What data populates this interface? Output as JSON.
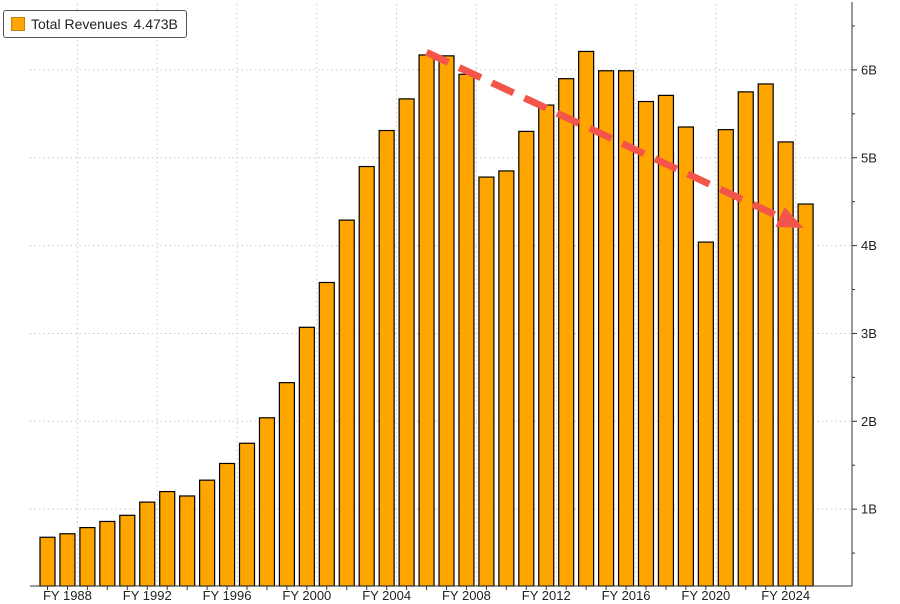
{
  "legend": {
    "label": "Total Revenues",
    "value": "4.473B"
  },
  "colors": {
    "bar": "#ffa500",
    "bar_stroke": "#000000",
    "trend_arrow": "#f4554a",
    "grid": "#c8c8c8"
  },
  "chart_data": {
    "type": "bar",
    "title": "",
    "xlabel": "",
    "ylabel": "",
    "ylim": [
      0,
      6.6
    ],
    "y_ticks": [
      {
        "value": 1,
        "label": "1B"
      },
      {
        "value": 2,
        "label": "2B"
      },
      {
        "value": 3,
        "label": "3B"
      },
      {
        "value": 4,
        "label": "4B"
      },
      {
        "value": 5,
        "label": "5B"
      },
      {
        "value": 6,
        "label": "6B"
      }
    ],
    "x_tick_labels": [
      "FY 1988",
      "FY 1992",
      "FY 1996",
      "FY 2000",
      "FY 2004",
      "FY 2008",
      "FY 2012",
      "FY 2016",
      "FY 2020",
      "FY 2024"
    ],
    "categories": [
      "FY 1987",
      "FY 1988",
      "FY 1989",
      "FY 1990",
      "FY 1991",
      "FY 1992",
      "FY 1993",
      "FY 1994",
      "FY 1995",
      "FY 1996",
      "FY 1997",
      "FY 1998",
      "FY 1999",
      "FY 2000",
      "FY 2001",
      "FY 2002",
      "FY 2003",
      "FY 2004",
      "FY 2005",
      "FY 2006",
      "FY 2007",
      "FY 2008",
      "FY 2009",
      "FY 2010",
      "FY 2011",
      "FY 2012",
      "FY 2013",
      "FY 2014",
      "FY 2015",
      "FY 2016",
      "FY 2017",
      "FY 2018",
      "FY 2019",
      "FY 2020",
      "FY 2021",
      "FY 2022",
      "FY 2023",
      "FY 2024",
      "FY 2025"
    ],
    "series": [
      {
        "name": "Total Revenues",
        "values": [
          0.68,
          0.72,
          0.79,
          0.86,
          0.93,
          1.08,
          1.2,
          1.15,
          1.33,
          1.52,
          1.75,
          2.04,
          2.44,
          3.07,
          3.58,
          4.29,
          4.9,
          5.31,
          5.67,
          6.17,
          6.16,
          5.95,
          4.78,
          4.85,
          5.3,
          5.6,
          5.9,
          6.21,
          5.99,
          5.99,
          5.64,
          5.71,
          5.35,
          4.04,
          5.32,
          5.75,
          5.84,
          5.18,
          4.473
        ]
      }
    ],
    "grid": true,
    "legend_position": "top-left",
    "annotation": {
      "type": "trend-arrow",
      "from_category": "FY 2006",
      "from_value": 6.2,
      "to_category": "FY 2025",
      "to_value": 4.2
    }
  }
}
